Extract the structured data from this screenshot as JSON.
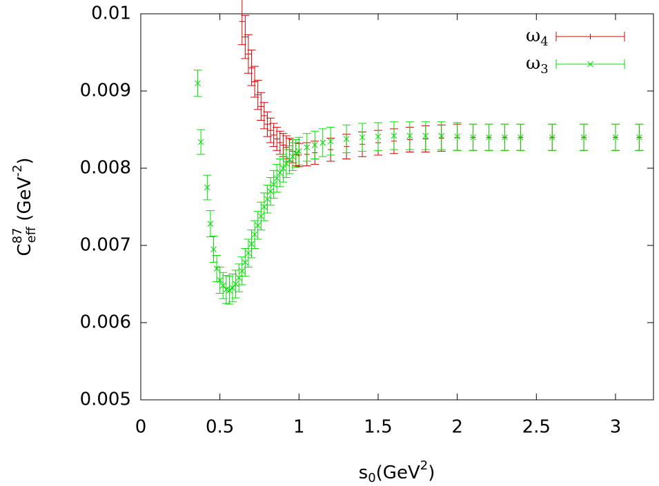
{
  "chart_data": {
    "type": "errorbar",
    "ylabel": {
      "base": "C",
      "sup": "87",
      "sub": "eff",
      "unit": " (GeV",
      "unit_sup": "-2",
      "close": ")"
    },
    "xlabel": {
      "base": "s",
      "sub": "0",
      "unit": "(GeV",
      "unit_sup": "2",
      "close": ")"
    },
    "xlim": [
      0,
      3.24
    ],
    "ylim": [
      0.005,
      0.01
    ],
    "xticks": [
      0,
      0.5,
      1,
      1.5,
      2,
      2.5,
      3
    ],
    "yticks": [
      0.005,
      0.006,
      0.007,
      0.008,
      0.009,
      0.01
    ],
    "legend": "top-right",
    "series": [
      {
        "name": "ω",
        "sub": "4",
        "color": "#d40000",
        "marker": "plus",
        "x": [
          0.64,
          0.66,
          0.68,
          0.7,
          0.72,
          0.74,
          0.76,
          0.78,
          0.8,
          0.82,
          0.84,
          0.86,
          0.88,
          0.9,
          0.92,
          0.94,
          0.96,
          0.98,
          1.0,
          1.05,
          1.1,
          1.2,
          1.3,
          1.4,
          1.5,
          1.6,
          1.7,
          1.8,
          1.9,
          2.0,
          2.1,
          2.2,
          2.3,
          2.4,
          2.6,
          2.8,
          3.0,
          3.15
        ],
        "values": [
          0.0099,
          0.0097,
          0.00948,
          0.0093,
          0.00912,
          0.00895,
          0.0088,
          0.00868,
          0.00857,
          0.00849,
          0.00843,
          0.00838,
          0.00833,
          0.0083,
          0.00827,
          0.00824,
          0.00822,
          0.00818,
          0.00817,
          0.00818,
          0.0082,
          0.00824,
          0.00828,
          0.00831,
          0.00833,
          0.00835,
          0.00837,
          0.00838,
          0.00839,
          0.0084,
          0.0084,
          0.0084,
          0.0084,
          0.0084,
          0.0084,
          0.0084,
          0.0084,
          0.0084
        ],
        "errors": [
          0.0003,
          0.00028,
          0.00025,
          0.00023,
          0.0002,
          0.00019,
          0.00018,
          0.00017,
          0.00016,
          0.00016,
          0.00015,
          0.00015,
          0.00015,
          0.00015,
          0.00015,
          0.00015,
          0.00015,
          0.00015,
          0.00015,
          0.00015,
          0.00015,
          0.00015,
          0.00016,
          0.00016,
          0.00016,
          0.00016,
          0.00016,
          0.00017,
          0.00017,
          0.00017,
          0.00017,
          0.00017,
          0.00017,
          0.00017,
          0.00017,
          0.00017,
          0.00017,
          0.00017
        ]
      },
      {
        "name": "ω",
        "sub": "3",
        "color": "#00e000",
        "marker": "cross",
        "x": [
          0.36,
          0.38,
          0.42,
          0.44,
          0.46,
          0.48,
          0.5,
          0.52,
          0.54,
          0.56,
          0.58,
          0.6,
          0.62,
          0.64,
          0.66,
          0.68,
          0.7,
          0.72,
          0.74,
          0.76,
          0.78,
          0.8,
          0.82,
          0.84,
          0.86,
          0.88,
          0.9,
          0.92,
          0.94,
          0.96,
          0.98,
          1.0,
          1.05,
          1.1,
          1.15,
          1.2,
          1.3,
          1.4,
          1.5,
          1.6,
          1.7,
          1.8,
          1.9,
          2.0,
          2.1,
          2.2,
          2.3,
          2.4,
          2.6,
          2.8,
          3.0,
          3.15
        ],
        "values": [
          0.0091,
          0.00834,
          0.00775,
          0.00728,
          0.00695,
          0.0067,
          0.00655,
          0.00648,
          0.00643,
          0.00642,
          0.00645,
          0.0065,
          0.00658,
          0.00667,
          0.00678,
          0.0069,
          0.00702,
          0.00714,
          0.00726,
          0.00738,
          0.0075,
          0.0076,
          0.0077,
          0.00779,
          0.00787,
          0.00794,
          0.008,
          0.00806,
          0.00811,
          0.00815,
          0.00819,
          0.00822,
          0.00827,
          0.0083,
          0.00833,
          0.00835,
          0.00838,
          0.0084,
          0.00841,
          0.00842,
          0.00842,
          0.00842,
          0.00842,
          0.00841,
          0.0084,
          0.0084,
          0.0084,
          0.0084,
          0.0084,
          0.0084,
          0.0084,
          0.0084
        ],
        "errors": [
          0.00017,
          0.00016,
          0.00016,
          0.00017,
          0.00017,
          0.00017,
          0.00017,
          0.00017,
          0.00018,
          0.00018,
          0.00018,
          0.00018,
          0.00018,
          0.00018,
          0.00018,
          0.00018,
          0.00018,
          0.00018,
          0.00018,
          0.00018,
          0.00018,
          0.00018,
          0.00018,
          0.00018,
          0.00018,
          0.00018,
          0.00018,
          0.00018,
          0.00018,
          0.00018,
          0.00018,
          0.00018,
          0.00018,
          0.00018,
          0.00018,
          0.00018,
          0.00018,
          0.00018,
          0.00018,
          0.00018,
          0.00018,
          0.00018,
          0.00018,
          0.00018,
          0.00017,
          0.00017,
          0.00017,
          0.00017,
          0.00017,
          0.00017,
          0.00017,
          0.00017
        ]
      }
    ]
  }
}
